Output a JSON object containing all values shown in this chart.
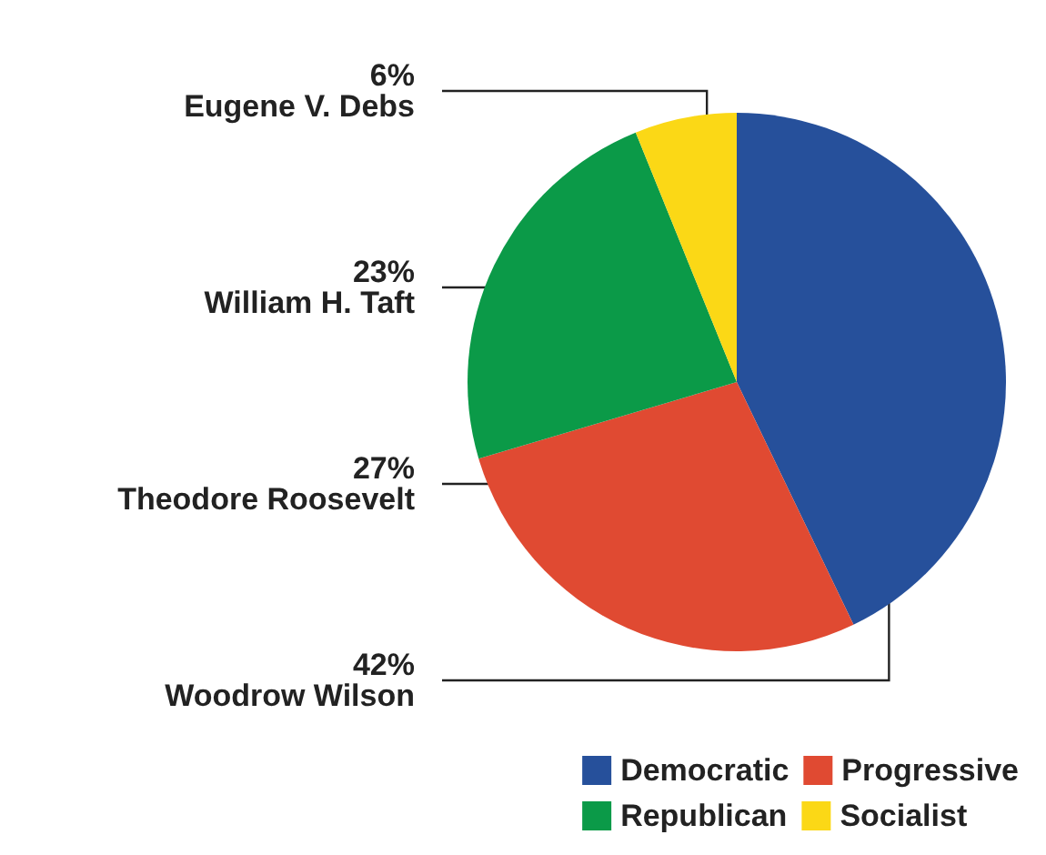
{
  "chart_data": {
    "type": "pie",
    "categories": [
      "Democratic",
      "Progressive",
      "Republican",
      "Socialist"
    ],
    "values": [
      42,
      27,
      23,
      6
    ],
    "colors": [
      "#26509b",
      "#e04a32",
      "#0b9a48",
      "#fbd816"
    ],
    "value_labels": [
      "42%\nWoodrow Wilson",
      "27%\nTheodore Roosevelt",
      "23%\nWilliam H. Taft",
      "6%\nEugene V. Debs"
    ],
    "legend": "bottom right"
  }
}
